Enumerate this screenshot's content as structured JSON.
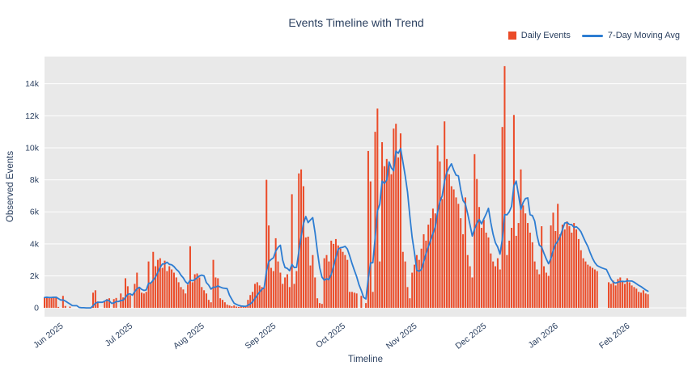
{
  "title": "Events Timeline with Trend",
  "legend": {
    "items": [
      {
        "label": "Daily Events",
        "type": "bar",
        "color": "#eb4b28"
      },
      {
        "label": "7-Day Moving Avg",
        "type": "line",
        "color": "#2d7dd2"
      }
    ]
  },
  "axes": {
    "x_label": "Timeline",
    "y_label": "Observed Events",
    "y_ticks": [
      {
        "label": "0",
        "value": 0
      },
      {
        "label": "2k",
        "value": 2000
      },
      {
        "label": "4k",
        "value": 4000
      },
      {
        "label": "6k",
        "value": 6000
      },
      {
        "label": "8k",
        "value": 8000
      },
      {
        "label": "10k",
        "value": 10000
      },
      {
        "label": "12k",
        "value": 12000
      },
      {
        "label": "14k",
        "value": 14000
      }
    ],
    "x_ticks": [
      {
        "label": "Jun 2025",
        "day": 5
      },
      {
        "label": "Jul 2025",
        "day": 35
      },
      {
        "label": "Aug 2025",
        "day": 66
      },
      {
        "label": "Sep 2025",
        "day": 97
      },
      {
        "label": "Oct 2025",
        "day": 127
      },
      {
        "label": "Nov 2025",
        "day": 158
      },
      {
        "label": "Dec 2025",
        "day": 188
      },
      {
        "label": "Jan 2026",
        "day": 219
      },
      {
        "label": "Feb 2026",
        "day": 250
      }
    ]
  },
  "chart_data": {
    "type": "bar",
    "title": "Events Timeline with Trend",
    "xlabel": "Timeline",
    "ylabel": "Observed Events",
    "x_start_date": "2025-05-27",
    "x_axis_span_days": 277.6,
    "ylim": [
      -550,
      15700
    ],
    "grid": true,
    "plot_bg": "#e9e9e9",
    "grid_color": "#ffffff",
    "legend_position": "top-right",
    "moving_avg_window": 7,
    "series": [
      {
        "name": "Daily Events",
        "type": "bar",
        "color": "#eb4b28",
        "values": [
          650,
          680,
          620,
          660,
          700,
          700,
          60,
          0,
          750,
          120,
          0,
          80,
          0,
          0,
          0,
          0,
          0,
          0,
          0,
          0,
          0,
          950,
          1100,
          400,
          0,
          0,
          450,
          550,
          600,
          0,
          550,
          620,
          0,
          900,
          650,
          1850,
          1350,
          800,
          0,
          1500,
          2200,
          1300,
          950,
          900,
          1000,
          2900,
          1600,
          3500,
          2600,
          3000,
          3100,
          2500,
          2950,
          2300,
          2600,
          2400,
          2200,
          1900,
          1600,
          1300,
          1150,
          900,
          1450,
          3850,
          1600,
          2100,
          2150,
          1900,
          1300,
          1100,
          900,
          500,
          350,
          3000,
          1900,
          1850,
          600,
          500,
          350,
          200,
          150,
          100,
          150,
          80,
          60,
          100,
          80,
          120,
          500,
          800,
          1000,
          1500,
          1600,
          1400,
          1300,
          1250,
          8000,
          5150,
          2500,
          2300,
          4350,
          2900,
          2200,
          1500,
          1900,
          2100,
          1300,
          7100,
          1500,
          2300,
          8400,
          8650,
          7600,
          4400,
          4450,
          2650,
          3300,
          1900,
          600,
          300,
          250,
          3100,
          3300,
          2900,
          4200,
          4000,
          4300,
          3900,
          3700,
          3500,
          3300,
          3000,
          1000,
          1000,
          950,
          900,
          0,
          750,
          0,
          300,
          9800,
          7900,
          1000,
          11000,
          12450,
          2900,
          10350,
          8850,
          9300,
          9000,
          8350,
          11200,
          11500,
          9400,
          10900,
          3500,
          2900,
          1300,
          600,
          2200,
          2700,
          3300,
          3000,
          3700,
          4600,
          4200,
          5200,
          5600,
          6200,
          5900,
          10150,
          9150,
          6800,
          11650,
          9300,
          8350,
          7600,
          7400,
          6900,
          6500,
          5600,
          4600,
          6900,
          3300,
          2600,
          1900,
          9600,
          8050,
          6300,
          5000,
          5500,
          4700,
          4400,
          3400,
          2900,
          2600,
          3100,
          2400,
          11300,
          15100,
          3300,
          4200,
          5000,
          12050,
          4500,
          5300,
          8650,
          6400,
          5900,
          5300,
          4700,
          4100,
          2900,
          2400,
          2100,
          5100,
          2600,
          2200,
          2000,
          5150,
          5950,
          4800,
          6500,
          4600,
          5200,
          4900,
          5400,
          5100,
          4700,
          5300,
          4900,
          4300,
          3600,
          3100,
          2900,
          2700,
          2600,
          2500,
          2400,
          2300,
          null,
          null,
          null,
          null,
          1600,
          1500,
          1700,
          1400,
          1800,
          1900,
          1700,
          1500,
          1850,
          1600,
          1400,
          1300,
          1200,
          1000,
          950,
          1100,
          900,
          850
        ]
      },
      {
        "name": "7-Day Moving Avg",
        "type": "line",
        "color": "#2d7dd2",
        "derived_from": "Daily Events",
        "derivation": "trailing 7-day mean (partial windows at start, gaps skipped)"
      }
    ]
  }
}
